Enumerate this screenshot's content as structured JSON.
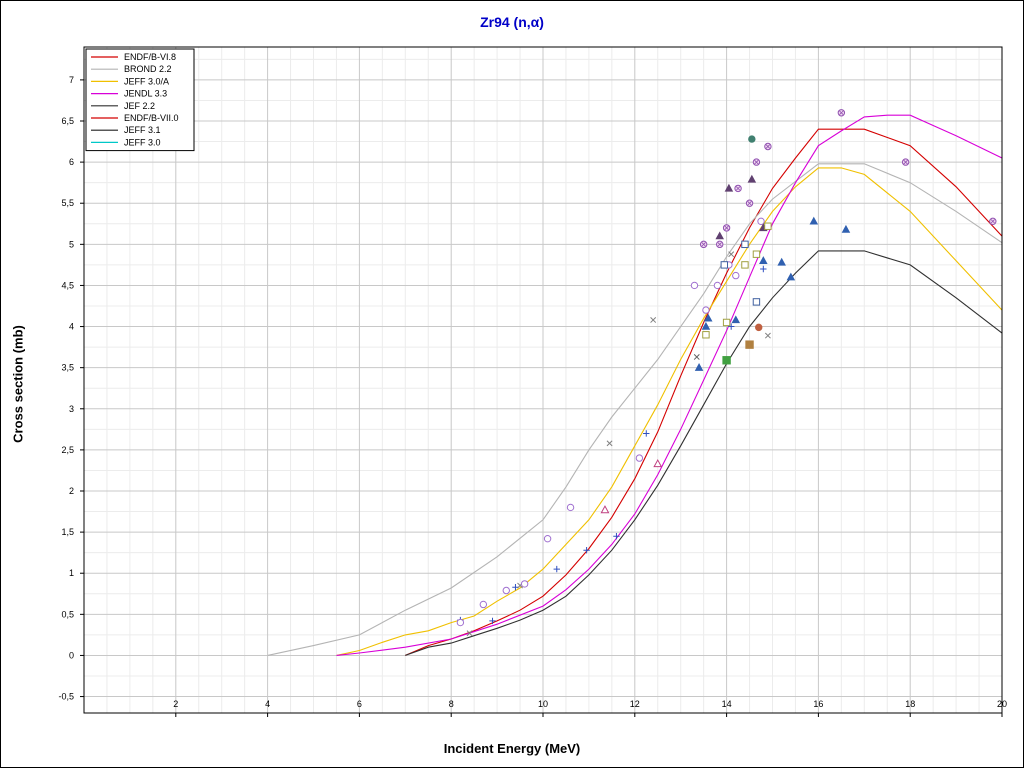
{
  "chart_data": {
    "type": "line",
    "title": "Zr94 (n,α)",
    "xlabel": "Incident Energy (MeV)",
    "ylabel": "Cross section (mb)",
    "xlim": [
      0,
      20
    ],
    "ylim": [
      -0.7,
      7.4
    ],
    "xticks": [
      2,
      4,
      6,
      8,
      10,
      12,
      14,
      16,
      18,
      20
    ],
    "xtick_labels": [
      "2",
      "4",
      "6",
      "8",
      "10",
      "12",
      "14",
      "16",
      "18",
      "20"
    ],
    "yticks": [
      -0.5,
      0,
      0.5,
      1,
      1.5,
      2,
      2.5,
      3,
      3.5,
      4,
      4.5,
      5,
      5.5,
      6,
      6.5,
      7
    ],
    "ytick_labels": [
      "-0,5",
      "0",
      "0,5",
      "1",
      "1,5",
      "2",
      "2,5",
      "3",
      "3,5",
      "4",
      "4,5",
      "5",
      "5,5",
      "6",
      "6,5",
      "7"
    ],
    "grid": true,
    "legend_position": "top-left",
    "series": [
      {
        "name": "ENDF/B-VI.8",
        "color": "#d40000",
        "points": [
          [
            7,
            0
          ],
          [
            7.5,
            0.12
          ],
          [
            8,
            0.2
          ],
          [
            8.5,
            0.3
          ],
          [
            9,
            0.42
          ],
          [
            9.5,
            0.55
          ],
          [
            10,
            0.72
          ],
          [
            10.5,
            0.98
          ],
          [
            11,
            1.3
          ],
          [
            11.5,
            1.68
          ],
          [
            12,
            2.15
          ],
          [
            12.5,
            2.72
          ],
          [
            13,
            3.4
          ],
          [
            13.5,
            4.05
          ],
          [
            14,
            4.65
          ],
          [
            14.5,
            5.2
          ],
          [
            15,
            5.68
          ],
          [
            15.5,
            6.05
          ],
          [
            16,
            6.4
          ],
          [
            17,
            6.4
          ],
          [
            18,
            6.2
          ],
          [
            19,
            5.7
          ],
          [
            20,
            5.1
          ]
        ]
      },
      {
        "name": "BROND 2.2",
        "color": "#b4b4b4",
        "points": [
          [
            4,
            0
          ],
          [
            5,
            0.12
          ],
          [
            6,
            0.25
          ],
          [
            7,
            0.55
          ],
          [
            8,
            0.82
          ],
          [
            9,
            1.2
          ],
          [
            10,
            1.65
          ],
          [
            10.5,
            2.05
          ],
          [
            11,
            2.5
          ],
          [
            11.5,
            2.9
          ],
          [
            12,
            3.25
          ],
          [
            12.5,
            3.6
          ],
          [
            13,
            4.0
          ],
          [
            13.5,
            4.4
          ],
          [
            14,
            4.85
          ],
          [
            14.5,
            5.25
          ],
          [
            15,
            5.55
          ],
          [
            16,
            5.98
          ],
          [
            17,
            5.98
          ],
          [
            18,
            5.75
          ],
          [
            19,
            5.4
          ],
          [
            20,
            5.02
          ]
        ]
      },
      {
        "name": "JEFF 3.0/A",
        "color": "#f0c000",
        "points": [
          [
            5.5,
            0
          ],
          [
            6,
            0.06
          ],
          [
            6.5,
            0.16
          ],
          [
            7,
            0.25
          ],
          [
            7.5,
            0.3
          ],
          [
            8,
            0.4
          ],
          [
            8.5,
            0.48
          ],
          [
            9,
            0.66
          ],
          [
            9.5,
            0.82
          ],
          [
            10,
            1.05
          ],
          [
            10.5,
            1.35
          ],
          [
            11,
            1.65
          ],
          [
            11.5,
            2.05
          ],
          [
            12,
            2.55
          ],
          [
            12.5,
            3.05
          ],
          [
            13,
            3.6
          ],
          [
            13.5,
            4.1
          ],
          [
            14,
            4.55
          ],
          [
            14.5,
            5.0
          ],
          [
            15,
            5.4
          ],
          [
            15.5,
            5.7
          ],
          [
            16,
            5.93
          ],
          [
            16.5,
            5.93
          ],
          [
            17,
            5.85
          ],
          [
            18,
            5.4
          ],
          [
            19,
            4.8
          ],
          [
            20,
            4.2
          ]
        ]
      },
      {
        "name": "JENDL 3.3",
        "color": "#d800d8",
        "points": [
          [
            5.5,
            0
          ],
          [
            6,
            0.03
          ],
          [
            7,
            0.1
          ],
          [
            8,
            0.2
          ],
          [
            9,
            0.38
          ],
          [
            10,
            0.6
          ],
          [
            10.5,
            0.8
          ],
          [
            11,
            1.05
          ],
          [
            11.5,
            1.35
          ],
          [
            12,
            1.72
          ],
          [
            12.5,
            2.2
          ],
          [
            13,
            2.75
          ],
          [
            13.5,
            3.35
          ],
          [
            14,
            3.95
          ],
          [
            14.5,
            4.6
          ],
          [
            15,
            5.25
          ],
          [
            15.5,
            5.75
          ],
          [
            16,
            6.2
          ],
          [
            16.5,
            6.38
          ],
          [
            17,
            6.55
          ],
          [
            17.5,
            6.57
          ],
          [
            18,
            6.57
          ],
          [
            19,
            6.32
          ],
          [
            20,
            6.05
          ]
        ]
      },
      {
        "name": "JEF 2.2",
        "color": "#303030",
        "points": [
          [
            7,
            0
          ],
          [
            7.5,
            0.1
          ],
          [
            8,
            0.15
          ],
          [
            8.5,
            0.24
          ],
          [
            9,
            0.33
          ],
          [
            9.5,
            0.43
          ],
          [
            10,
            0.55
          ],
          [
            10.5,
            0.72
          ],
          [
            11,
            0.98
          ],
          [
            11.5,
            1.28
          ],
          [
            12,
            1.65
          ],
          [
            12.5,
            2.07
          ],
          [
            13,
            2.55
          ],
          [
            13.5,
            3.05
          ],
          [
            14,
            3.55
          ],
          [
            14.5,
            4.0
          ],
          [
            15,
            4.35
          ],
          [
            15.5,
            4.65
          ],
          [
            16,
            4.92
          ],
          [
            17,
            4.92
          ],
          [
            18,
            4.75
          ],
          [
            19,
            4.35
          ],
          [
            20,
            3.92
          ]
        ]
      },
      {
        "name": "ENDF/B-VII.0",
        "color": "#d40000",
        "points": []
      },
      {
        "name": "JEFF 3.1",
        "color": "#202020",
        "points": []
      },
      {
        "name": "JEFF 3.0",
        "color": "#00c8c8",
        "points": []
      }
    ],
    "experimental_points": [
      {
        "marker": "plus",
        "color": "#3050c0",
        "points": [
          [
            8.2,
            0.43
          ],
          [
            8.9,
            0.42
          ],
          [
            9.4,
            0.83
          ],
          [
            10.3,
            1.05
          ],
          [
            10.95,
            1.28
          ],
          [
            11.6,
            1.45
          ],
          [
            12.25,
            2.7
          ],
          [
            14.1,
            4.0
          ],
          [
            14.8,
            4.7
          ]
        ]
      },
      {
        "marker": "cross",
        "color": "#808080",
        "points": [
          [
            8.4,
            0.27
          ],
          [
            9.5,
            0.85
          ],
          [
            11.45,
            2.58
          ],
          [
            12.4,
            4.08
          ],
          [
            14.1,
            4.88
          ],
          [
            14.9,
            3.89
          ]
        ]
      },
      {
        "marker": "circle",
        "color": "#a070d0",
        "points": [
          [
            8.2,
            0.4
          ],
          [
            8.7,
            0.62
          ],
          [
            9.2,
            0.79
          ],
          [
            9.6,
            0.87
          ],
          [
            10.1,
            1.42
          ],
          [
            10.6,
            1.8
          ],
          [
            12.1,
            2.4
          ],
          [
            13.3,
            4.5
          ],
          [
            13.55,
            4.2
          ],
          [
            13.8,
            4.5
          ],
          [
            14.05,
            4.75
          ],
          [
            14.2,
            4.62
          ],
          [
            14.4,
            5.0
          ],
          [
            14.75,
            5.28
          ]
        ]
      },
      {
        "marker": "triangle-open",
        "color": "#c04080",
        "points": [
          [
            11.35,
            1.77
          ],
          [
            12.5,
            2.33
          ]
        ]
      },
      {
        "marker": "triangle",
        "color": "#3060b0",
        "points": [
          [
            13.4,
            3.5
          ],
          [
            13.55,
            4.0
          ],
          [
            13.6,
            4.1
          ],
          [
            14.2,
            4.08
          ],
          [
            14.8,
            4.8
          ],
          [
            15.2,
            4.78
          ],
          [
            15.4,
            4.6
          ],
          [
            15.9,
            5.28
          ],
          [
            16.6,
            5.18
          ]
        ]
      },
      {
        "marker": "triangle",
        "color": "#604070",
        "points": [
          [
            13.85,
            5.1
          ],
          [
            14.05,
            5.68
          ],
          [
            14.55,
            5.79
          ],
          [
            14.8,
            5.2
          ]
        ]
      },
      {
        "marker": "diamond-circle",
        "color": "#9050b0",
        "points": [
          [
            13.5,
            5.0
          ],
          [
            13.85,
            5.0
          ],
          [
            14.0,
            5.2
          ],
          [
            14.25,
            5.68
          ],
          [
            14.5,
            5.5
          ],
          [
            14.65,
            6.0
          ],
          [
            14.9,
            6.19
          ],
          [
            16.5,
            6.6
          ],
          [
            17.9,
            6.0
          ],
          [
            19.8,
            5.28
          ]
        ]
      },
      {
        "marker": "square-open",
        "color": "#4060a0",
        "points": [
          [
            13.95,
            4.75
          ],
          [
            14.4,
            5.0
          ],
          [
            14.65,
            4.3
          ]
        ]
      },
      {
        "marker": "square-open",
        "color": "#a0a040",
        "points": [
          [
            13.55,
            3.9
          ],
          [
            14.0,
            4.05
          ],
          [
            14.4,
            4.75
          ],
          [
            14.65,
            4.88
          ],
          [
            14.9,
            5.22
          ]
        ]
      },
      {
        "marker": "square",
        "color": "#40a040",
        "points": [
          [
            14.0,
            3.59
          ]
        ]
      },
      {
        "marker": "square",
        "color": "#b08040",
        "points": [
          [
            14.5,
            3.78
          ]
        ]
      },
      {
        "marker": "circle-filled",
        "color": "#408070",
        "points": [
          [
            14.55,
            6.28
          ]
        ]
      },
      {
        "marker": "circle-filled",
        "color": "#c06040",
        "points": [
          [
            14.7,
            3.99
          ]
        ]
      },
      {
        "marker": "cross",
        "color": "#606060",
        "points": [
          [
            13.35,
            3.63
          ]
        ]
      }
    ]
  }
}
